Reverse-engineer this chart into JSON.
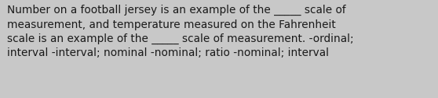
{
  "text": "Number on a football jersey is an example of the _____ scale of\nmeasurement, and temperature measured on the Fahrenheit\nscale is an example of the _____ scale of measurement. -ordinal;\ninterval -interval; nominal -nominal; ratio -nominal; interval",
  "background_color": "#c8c8c8",
  "text_color": "#1a1a1a",
  "font_size": 9.8,
  "fig_width": 5.58,
  "fig_height": 1.26,
  "dpi": 100
}
